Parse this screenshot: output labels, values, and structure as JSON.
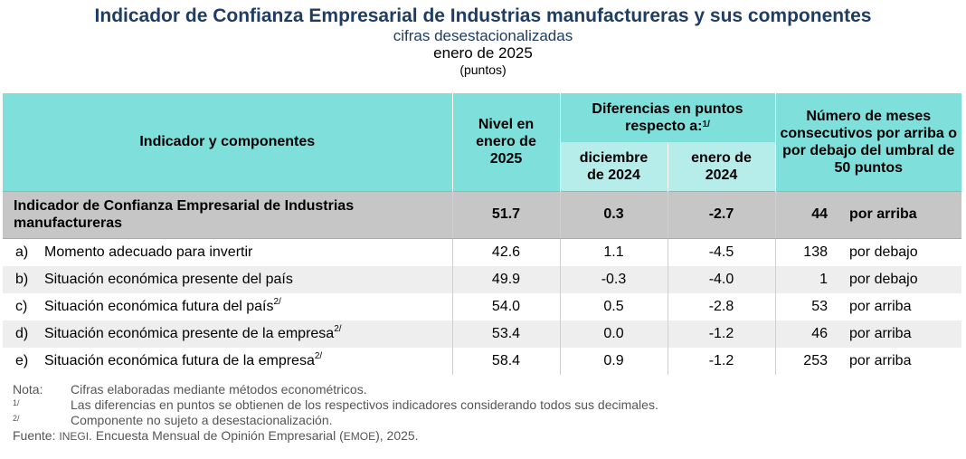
{
  "header": {
    "title": "Indicador de Confianza Empresarial de Industrias manufactureras y sus componentes",
    "subtitle": "cifras desestacionalizadas",
    "date": "enero de 2025",
    "units": "(puntos)"
  },
  "table": {
    "col_indicator": "Indicador y componentes",
    "col_level": "Nivel en enero de 2025",
    "col_diff": "Diferencias en puntos respecto a:",
    "col_diff_note": "1/",
    "col_dec": "diciembre de 2024",
    "col_jan": "enero de 2024",
    "col_months": "Número de meses consecutivos por arriba o por debajo del umbral de 50 puntos",
    "main_row": {
      "label": "Indicador de Confianza Empresarial de Industrias manufactureras",
      "level": "51.7",
      "diff_dec": "0.3",
      "diff_jan": "-2.7",
      "months": "44",
      "direction": "por arriba"
    },
    "rows": [
      {
        "letter": "a)",
        "label": "Momento adecuado para invertir",
        "note": "",
        "level": "42.6",
        "diff_dec": "1.1",
        "diff_jan": "-4.5",
        "months": "138",
        "direction": "por debajo"
      },
      {
        "letter": "b)",
        "label": "Situación económica presente del país",
        "note": "",
        "level": "49.9",
        "diff_dec": "-0.3",
        "diff_jan": "-4.0",
        "months": "1",
        "direction": "por debajo"
      },
      {
        "letter": "c)",
        "label": "Situación económica futura del país",
        "note": "2/",
        "level": "54.0",
        "diff_dec": "0.5",
        "diff_jan": "-2.8",
        "months": "53",
        "direction": "por arriba"
      },
      {
        "letter": "d)",
        "label": "Situación económica presente de la empresa",
        "note": "2/",
        "level": "53.4",
        "diff_dec": "0.0",
        "diff_jan": "-1.2",
        "months": "46",
        "direction": "por arriba"
      },
      {
        "letter": "e)",
        "label": "Situación económica futura de la empresa",
        "note": "2/",
        "level": "58.4",
        "diff_dec": "0.9",
        "diff_jan": "-1.2",
        "months": "253",
        "direction": "por arriba"
      }
    ]
  },
  "notes": {
    "nota_label": "Nota:",
    "nota_text": "Cifras elaboradas mediante métodos econométricos.",
    "n1_key": "1/",
    "n1_text": "Las diferencias en puntos se obtienen de los respectivos indicadores considerando todos sus decimales.",
    "n2_key": "2/",
    "n2_text": "Componente no sujeto a desestacionalización.",
    "source_label": "Fuente:",
    "source_org": "INEGI",
    "source_text_a": ". Encuesta Mensual de Opinión Empresarial (",
    "source_abbr": "EMOE",
    "source_text_b": "), 2025."
  },
  "colors": {
    "title": "#1f3d63",
    "header_bg": "#7edfdb",
    "subheader_bg": "#b6ecea",
    "indicator_row_bg": "#c6c6c6",
    "alt_row_bg": "#eeeeee"
  }
}
